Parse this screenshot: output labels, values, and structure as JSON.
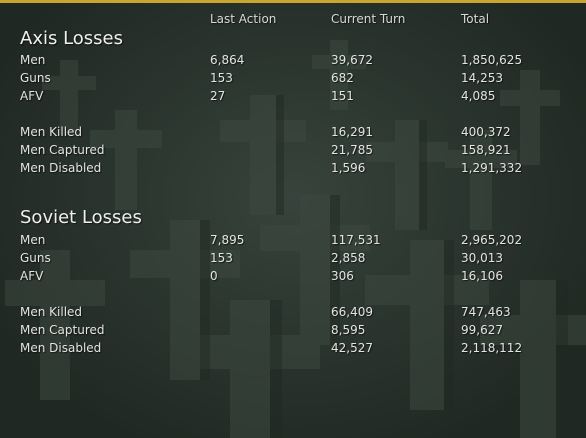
{
  "colors": {
    "accent_bar": "#c9a62c",
    "background": "#2f3a33",
    "text": "#e4e4e4"
  },
  "columns": {
    "last_action": "Last Action",
    "current_turn": "Current Turn",
    "total": "Total"
  },
  "axis": {
    "title": "Axis Losses",
    "rows": [
      {
        "label": "Men",
        "last": "6,864",
        "turn": "39,672",
        "total": "1,850,625"
      },
      {
        "label": "Guns",
        "last": "153",
        "turn": "682",
        "total": "14,253"
      },
      {
        "label": "AFV",
        "last": "27",
        "turn": "151",
        "total": "4,085"
      },
      {
        "label": "Men Killed",
        "last": "",
        "turn": "16,291",
        "total": "400,372"
      },
      {
        "label": "Men Captured",
        "last": "",
        "turn": "21,785",
        "total": "158,921"
      },
      {
        "label": "Men Disabled",
        "last": "",
        "turn": "1,596",
        "total": "1,291,332"
      }
    ]
  },
  "soviet": {
    "title": "Soviet Losses",
    "rows": [
      {
        "label": "Men",
        "last": "7,895",
        "turn": "117,531",
        "total": "2,965,202"
      },
      {
        "label": "Guns",
        "last": "153",
        "turn": "2,858",
        "total": "30,013"
      },
      {
        "label": "AFV",
        "last": "0",
        "turn": "306",
        "total": "16,106"
      },
      {
        "label": "Men Killed",
        "last": "",
        "turn": "66,409",
        "total": "747,463"
      },
      {
        "label": "Men Captured",
        "last": "",
        "turn": "8,595",
        "total": "99,627"
      },
      {
        "label": "Men Disabled",
        "last": "",
        "turn": "42,527",
        "total": "2,118,112"
      }
    ]
  }
}
